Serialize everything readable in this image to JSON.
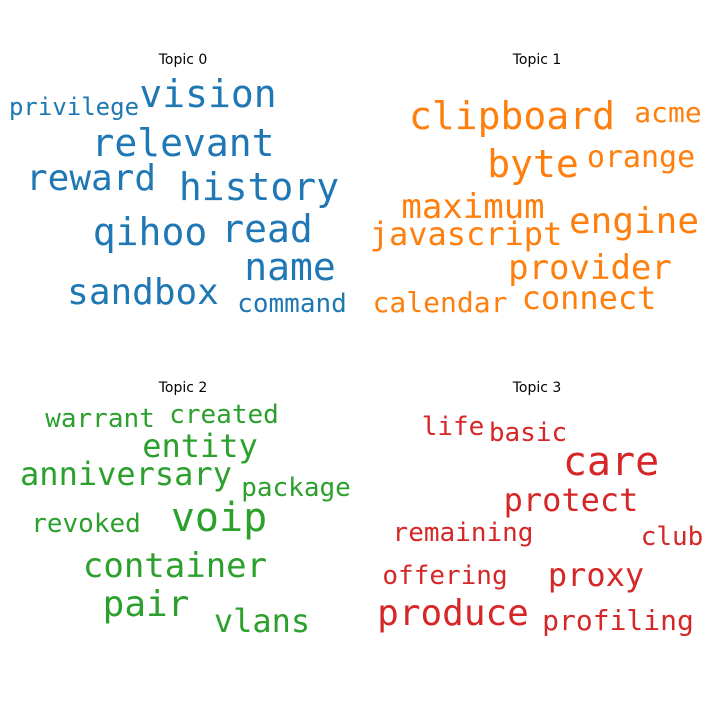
{
  "chart_data": {
    "type": "wordcloud",
    "panels": [
      {
        "title": "Topic 0",
        "color": "#1f77b4",
        "words": [
          "vision",
          "privilege",
          "relevant",
          "reward",
          "history",
          "qihoo",
          "read",
          "name",
          "sandbox",
          "command"
        ]
      },
      {
        "title": "Topic 1",
        "color": "#ff7f0e",
        "words": [
          "clipboard",
          "acme",
          "byte",
          "orange",
          "maximum",
          "engine",
          "javascript",
          "provider",
          "calendar",
          "connect"
        ]
      },
      {
        "title": "Topic 2",
        "color": "#2ca02c",
        "words": [
          "warrant",
          "created",
          "entity",
          "anniversary",
          "package",
          "revoked",
          "voip",
          "container",
          "pair",
          "vlans"
        ]
      },
      {
        "title": "Topic 3",
        "color": "#d62728",
        "words": [
          "life",
          "basic",
          "care",
          "protect",
          "remaining",
          "club",
          "offering",
          "proxy",
          "produce",
          "profiling"
        ]
      }
    ]
  }
}
